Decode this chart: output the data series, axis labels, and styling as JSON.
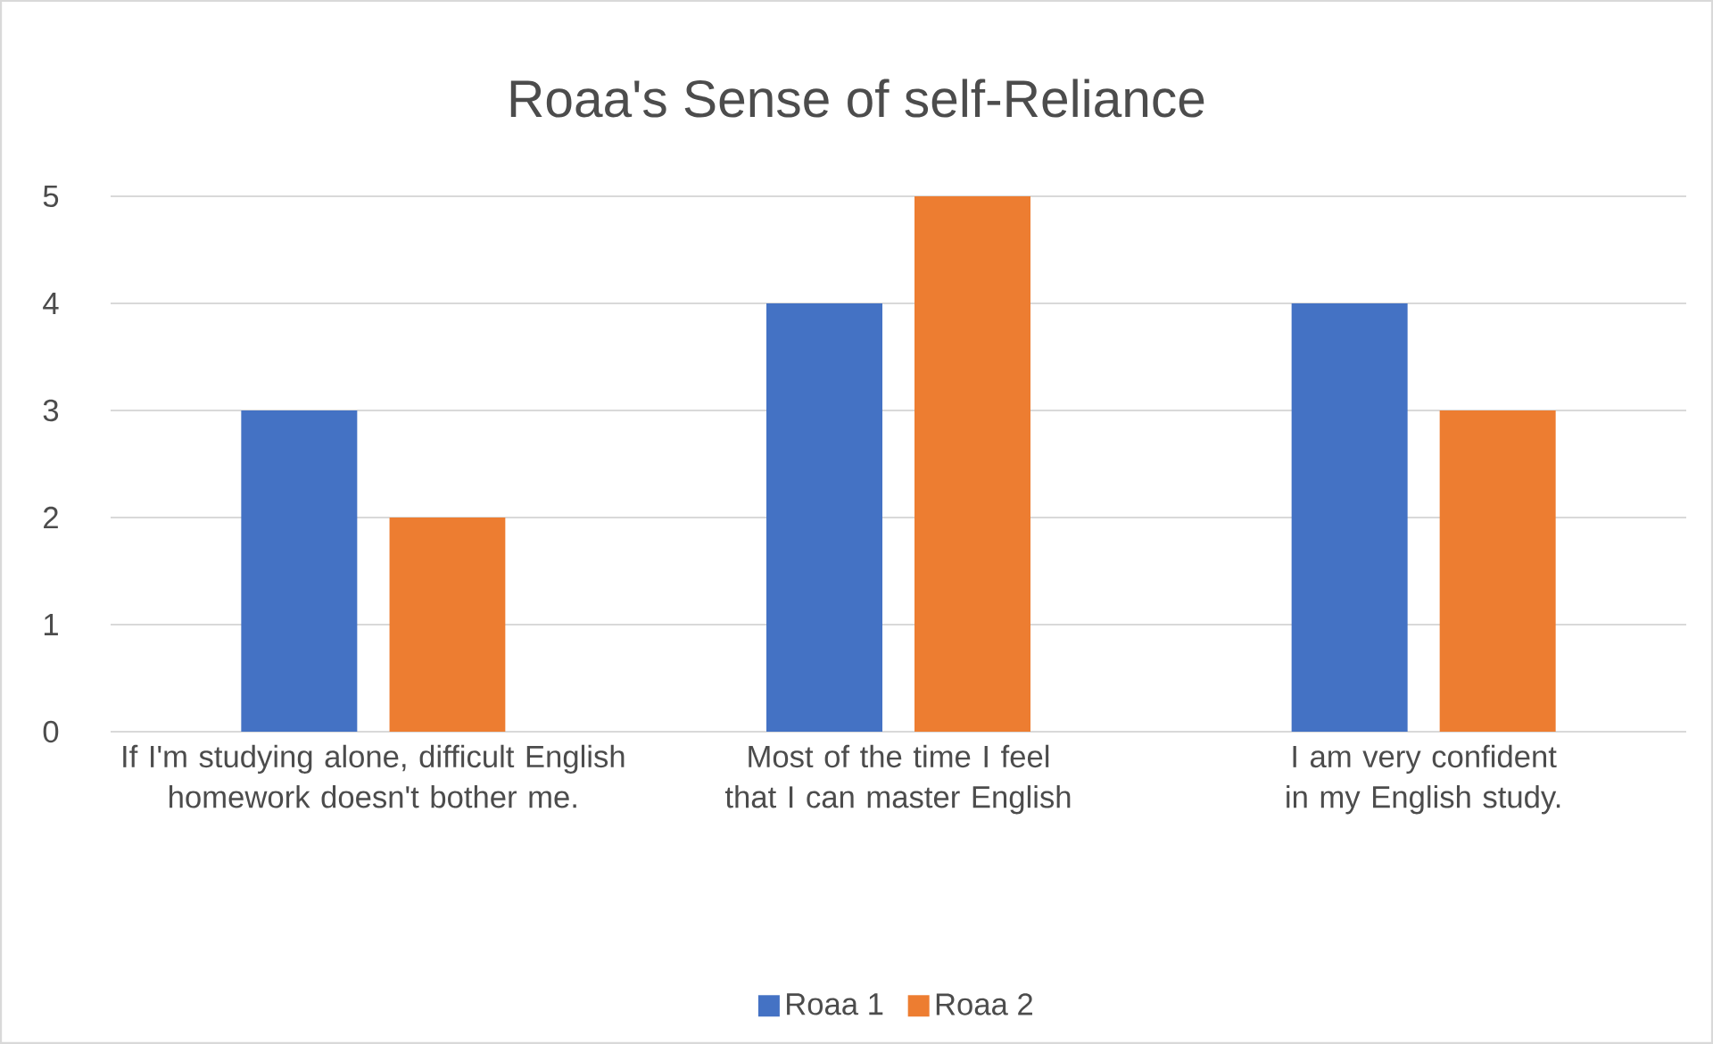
{
  "chart_data": {
    "type": "bar",
    "title": "Roaa's Sense of self-Reliance",
    "categories": [
      "If I'm studying alone, difficult English homework doesn't bother me.",
      "Most of the time I feel that I can master English",
      "I am very confident in my English study."
    ],
    "series": [
      {
        "name": "Roaa 1",
        "color": "#4472c4",
        "values": [
          3,
          4,
          4
        ]
      },
      {
        "name": "Roaa 2",
        "color": "#ed7d31",
        "values": [
          2,
          5,
          3
        ]
      }
    ],
    "ylim": [
      0,
      5
    ],
    "yticks": [
      0,
      1,
      2,
      3,
      4,
      5
    ],
    "grid": "y",
    "legend": "bottom"
  }
}
